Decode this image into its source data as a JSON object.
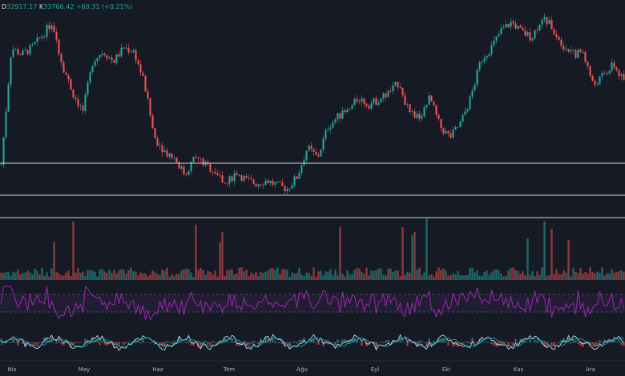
{
  "header": {
    "open_label": "D",
    "open_value": "32917.17",
    "high_label": "K",
    "high_value": "33766.42",
    "change": "+69.31 (+0.21%)"
  },
  "x_axis": {
    "ticks": [
      "Nis",
      "May",
      "Haz",
      "Tem",
      "Ağu",
      "Eyl",
      "Eki",
      "Kas",
      "Ara"
    ]
  },
  "colors": {
    "background": "#161a25",
    "candle_up": "#26a69a",
    "candle_down": "#ef5350",
    "horizontal_line": "#d1d4dc",
    "rsi_line": "#9c27b0",
    "rsi_band": "#2a1f3d",
    "macd_line": "#e0e3eb",
    "signal_line": "#00bcd4"
  },
  "chart_data": {
    "type": "candlestick",
    "series_close": [
      0.14,
      0.82,
      0.78,
      0.82,
      0.89,
      0.97,
      0.72,
      0.56,
      0.45,
      0.75,
      0.8,
      0.74,
      0.82,
      0.8,
      0.62,
      0.3,
      0.22,
      0.18,
      0.08,
      0.19,
      0.14,
      0.1,
      0.02,
      0.1,
      0.05,
      0.03,
      0.05,
      0.02,
      0.0,
      0.07,
      0.24,
      0.18,
      0.36,
      0.42,
      0.45,
      0.53,
      0.49,
      0.52,
      0.56,
      0.62,
      0.43,
      0.42,
      0.53,
      0.36,
      0.3,
      0.38,
      0.53,
      0.75,
      0.82,
      0.92,
      0.97,
      0.91,
      0.88,
      1.0,
      0.94,
      0.84,
      0.78,
      0.8,
      0.6,
      0.66,
      0.72,
      0.62
    ],
    "reference_lines": 3,
    "indicators": [
      "volume",
      "rsi",
      "macd"
    ]
  }
}
